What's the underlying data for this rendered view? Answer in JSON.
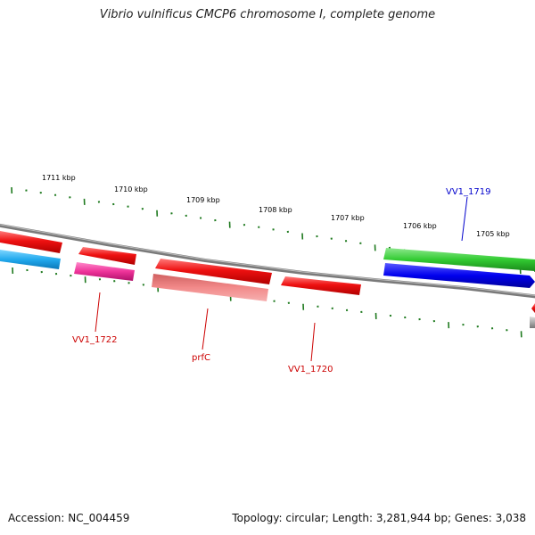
{
  "header": {
    "title": "Vibrio vulnificus CMCP6 chromosome I, complete genome"
  },
  "footer": {
    "accession": "Accession: NC_004459",
    "summary": "Topology: circular; Length: 3,281,944 bp; Genes: 3,038"
  },
  "ticks": [
    {
      "label": "1711 kbp"
    },
    {
      "label": "1710 kbp"
    },
    {
      "label": "1709 kbp"
    },
    {
      "label": "1708 kbp"
    },
    {
      "label": "1707 kbp"
    },
    {
      "label": "1706 kbp"
    },
    {
      "label": "1705 kbp"
    }
  ],
  "gene_labels": [
    {
      "text": "VV1_1722",
      "color": "#cc0000"
    },
    {
      "text": "prfC",
      "color": "#cc0000"
    },
    {
      "text": "VV1_1720",
      "color": "#cc0000"
    },
    {
      "text": "VV1_1719",
      "color": "#0000cc"
    }
  ],
  "colors": {
    "backbone": "#7a7a7a",
    "tick": "#1f7a1f",
    "red": "#ee1111",
    "pink": "#ee3399",
    "salmon": "#ee8080",
    "cyan": "#22aaee",
    "green": "#33cc33",
    "blue": "#0000ee",
    "gray_feature": "#aaaaaa"
  }
}
